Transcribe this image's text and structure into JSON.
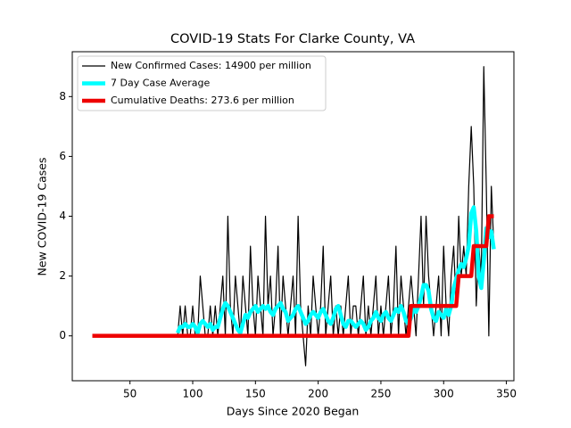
{
  "chart_data": {
    "type": "line",
    "title": "COVID-19 Stats For Clarke County, VA",
    "x_label": "Days Since 2020 Began",
    "y_label": "New COVID-19 Cases",
    "xlim": [
      4,
      356
    ],
    "ylim": [
      -1.5,
      9.5
    ],
    "xticks": [
      50,
      100,
      150,
      200,
      250,
      300,
      350
    ],
    "yticks": [
      0,
      2,
      4,
      6,
      8
    ],
    "legend": "upper left",
    "x": [
      20,
      88,
      90,
      92,
      94,
      96,
      98,
      100,
      102,
      104,
      106,
      108,
      110,
      112,
      114,
      116,
      118,
      120,
      122,
      124,
      126,
      128,
      130,
      132,
      134,
      136,
      138,
      140,
      142,
      144,
      146,
      148,
      150,
      152,
      154,
      156,
      158,
      160,
      162,
      164,
      166,
      168,
      170,
      172,
      174,
      176,
      178,
      180,
      182,
      184,
      186,
      188,
      190,
      192,
      194,
      196,
      198,
      200,
      202,
      204,
      206,
      208,
      210,
      212,
      214,
      216,
      218,
      220,
      222,
      224,
      226,
      228,
      230,
      232,
      234,
      236,
      238,
      240,
      242,
      244,
      246,
      248,
      250,
      252,
      254,
      256,
      258,
      260,
      262,
      264,
      266,
      268,
      270,
      272,
      274,
      276,
      278,
      280,
      282,
      284,
      286,
      288,
      290,
      292,
      294,
      296,
      298,
      300,
      302,
      304,
      306,
      308,
      310,
      312,
      314,
      316,
      318,
      320,
      322,
      324,
      326,
      328,
      330,
      332,
      334,
      336,
      338,
      340
    ],
    "series": [
      {
        "name": "New Confirmed Cases: 14900 per million",
        "color": "#000000",
        "values": [
          0,
          0,
          1,
          0,
          1,
          0,
          0,
          1,
          0,
          0,
          2,
          1,
          0,
          0,
          1,
          0,
          1,
          0,
          1,
          2,
          0,
          4,
          1,
          0,
          2,
          1,
          0,
          2,
          1,
          0,
          3,
          1,
          0,
          2,
          1,
          0,
          4,
          1,
          2,
          0,
          1,
          3,
          0,
          2,
          1,
          0,
          1,
          2,
          0,
          4,
          1,
          0,
          -1,
          1,
          0,
          2,
          1,
          0,
          1,
          3,
          0,
          1,
          2,
          0,
          1,
          0,
          1,
          0,
          1,
          2,
          0,
          1,
          1,
          0,
          1,
          2,
          0,
          1,
          0,
          1,
          2,
          0,
          1,
          0,
          1,
          2,
          0,
          1,
          3,
          0,
          2,
          1,
          0,
          1,
          2,
          1,
          0,
          2,
          4,
          1,
          4,
          2,
          1,
          0,
          1,
          2,
          0,
          3,
          1,
          0,
          2,
          3,
          1,
          4,
          2,
          3,
          2,
          5,
          7,
          5,
          1,
          3,
          2,
          9,
          5,
          0,
          5,
          3
        ]
      },
      {
        "name": "7 Day Case Average",
        "color": "#00ffff",
        "values": [
          null,
          0.1,
          0.3,
          0.3,
          0.4,
          0.3,
          0.3,
          0.4,
          0.3,
          0.1,
          0.4,
          0.5,
          0.4,
          0.3,
          0.4,
          0.2,
          0.3,
          0.3,
          0.6,
          0.9,
          1.1,
          1.0,
          0.8,
          0.6,
          0.4,
          0.2,
          0.1,
          0.4,
          0.7,
          0.6,
          0.8,
          0.9,
          1.0,
          0.8,
          0.9,
          1.0,
          0.9,
          1.0,
          0.8,
          0.7,
          0.9,
          1.0,
          1.1,
          0.9,
          0.8,
          0.5,
          0.6,
          0.7,
          0.9,
          1.0,
          0.8,
          0.6,
          0.4,
          0.5,
          0.7,
          0.8,
          0.7,
          0.6,
          0.8,
          0.9,
          0.7,
          0.5,
          0.4,
          0.6,
          0.9,
          1.0,
          0.7,
          0.4,
          0.3,
          0.5,
          0.5,
          0.4,
          0.3,
          0.4,
          0.5,
          0.4,
          0.2,
          0.3,
          0.5,
          0.6,
          0.8,
          0.6,
          0.5,
          0.7,
          0.8,
          0.6,
          0.5,
          0.7,
          0.9,
          0.8,
          1.0,
          0.8,
          0.5,
          0.4,
          0.6,
          0.9,
          0.8,
          1.0,
          1.3,
          1.7,
          1.7,
          1.5,
          0.9,
          0.6,
          0.5,
          0.8,
          0.7,
          0.6,
          0.9,
          0.7,
          1.0,
          1.6,
          1.9,
          2.2,
          2.4,
          2.3,
          2.6,
          3.0,
          4.1,
          4.3,
          3.5,
          2.0,
          1.6,
          2.5,
          3.6,
          3.3,
          3.5,
          2.9
        ]
      },
      {
        "name": "Cumulative Deaths: 273.6 per million",
        "color": "#ee0000",
        "values": [
          0,
          0,
          0,
          0,
          0,
          0,
          0,
          0,
          0,
          0,
          0,
          0,
          0,
          0,
          0,
          0,
          0,
          0,
          0,
          0,
          0,
          0,
          0,
          0,
          0,
          0,
          0,
          0,
          0,
          0,
          0,
          0,
          0,
          0,
          0,
          0,
          0,
          0,
          0,
          0,
          0,
          0,
          0,
          0,
          0,
          0,
          0,
          0,
          0,
          0,
          0,
          0,
          0,
          0,
          0,
          0,
          0,
          0,
          0,
          0,
          0,
          0,
          0,
          0,
          0,
          0,
          0,
          0,
          0,
          0,
          0,
          0,
          0,
          0,
          0,
          0,
          0,
          0,
          0,
          0,
          0,
          0,
          0,
          0,
          0,
          0,
          0,
          0,
          0,
          0,
          0,
          0,
          0,
          0,
          1,
          1,
          1,
          1,
          1,
          1,
          1,
          1,
          1,
          1,
          1,
          1,
          1,
          1,
          1,
          1,
          1,
          1,
          1,
          2,
          2,
          2,
          2,
          2,
          2,
          3,
          3,
          3,
          3,
          3,
          3,
          4,
          4,
          4
        ]
      }
    ]
  }
}
